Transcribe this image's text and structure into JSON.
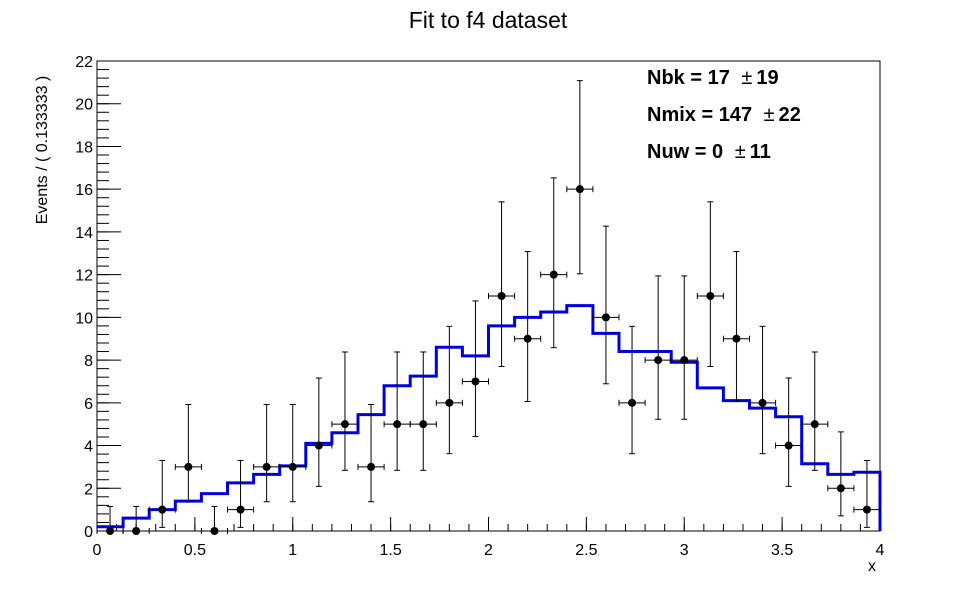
{
  "chart_data": {
    "type": "histogram",
    "title": "Fit to f4 dataset",
    "xlabel": "x",
    "ylabel": "Events / ( 0.133333 )",
    "xlim": [
      0,
      4
    ],
    "ylim": [
      0,
      22
    ],
    "xticks": [
      0,
      0.5,
      1,
      1.5,
      2,
      2.5,
      3,
      3.5,
      4
    ],
    "xtick_labels": [
      "0",
      "0.5",
      "1",
      "1.5",
      "2",
      "2.5",
      "3",
      "3.5",
      "4"
    ],
    "yticks": [
      0,
      2,
      4,
      6,
      8,
      10,
      12,
      14,
      16,
      18,
      20,
      22
    ],
    "ytick_labels": [
      "0",
      "2",
      "4",
      "6",
      "8",
      "10",
      "12",
      "14",
      "16",
      "18",
      "20",
      "22"
    ],
    "bin_width": 0.133333,
    "bin_centers": [
      0.0667,
      0.2,
      0.3333,
      0.4667,
      0.6,
      0.7333,
      0.8667,
      1.0,
      1.1333,
      1.2667,
      1.4,
      1.5333,
      1.6667,
      1.8,
      1.9333,
      2.0667,
      2.2,
      2.3333,
      2.4667,
      2.6,
      2.7333,
      2.8667,
      3.0,
      3.1333,
      3.2667,
      3.4,
      3.5333,
      3.6667,
      3.8,
      3.9333
    ],
    "data_points": {
      "values": [
        0,
        0,
        1,
        3,
        0,
        1,
        3,
        3,
        4,
        5,
        3,
        5,
        5,
        6,
        7,
        11,
        9,
        12,
        16,
        10,
        6,
        8,
        8,
        11,
        9,
        6,
        4,
        5,
        2,
        1
      ],
      "err_low": [
        0,
        0,
        0.83,
        1.63,
        0,
        0.83,
        1.63,
        1.63,
        1.91,
        2.16,
        1.63,
        2.16,
        2.16,
        2.38,
        2.58,
        3.3,
        2.94,
        3.42,
        3.96,
        3.11,
        2.38,
        2.77,
        2.77,
        3.3,
        2.94,
        2.38,
        1.91,
        2.16,
        1.29,
        0.83
      ],
      "err_high": [
        1.15,
        1.15,
        2.3,
        2.92,
        1.15,
        2.3,
        2.92,
        2.92,
        3.16,
        3.38,
        2.92,
        3.38,
        3.38,
        3.58,
        3.77,
        4.41,
        4.08,
        4.53,
        5.08,
        4.27,
        3.58,
        3.94,
        3.94,
        4.41,
        4.08,
        3.58,
        3.16,
        3.38,
        2.64,
        2.3
      ],
      "color": "#000000"
    },
    "fit_curve": {
      "type": "step",
      "values": [
        0.2,
        0.6,
        1.0,
        1.4,
        1.75,
        2.25,
        2.65,
        3.05,
        4.1,
        4.6,
        5.45,
        6.8,
        7.25,
        8.6,
        8.2,
        9.6,
        10.0,
        10.25,
        10.55,
        9.25,
        8.4,
        8.4,
        7.9,
        6.7,
        6.1,
        5.75,
        5.35,
        3.15,
        2.65,
        2.75
      ],
      "color": "#0000dd"
    },
    "annotations": [
      {
        "label": "Nbk =  17 ",
        "value": "19"
      },
      {
        "label": "Nmix =  147 ",
        "value": "22"
      },
      {
        "label": "Nuw =  0 ",
        "value": "11"
      }
    ],
    "pm_symbol": "±",
    "grid": false
  }
}
